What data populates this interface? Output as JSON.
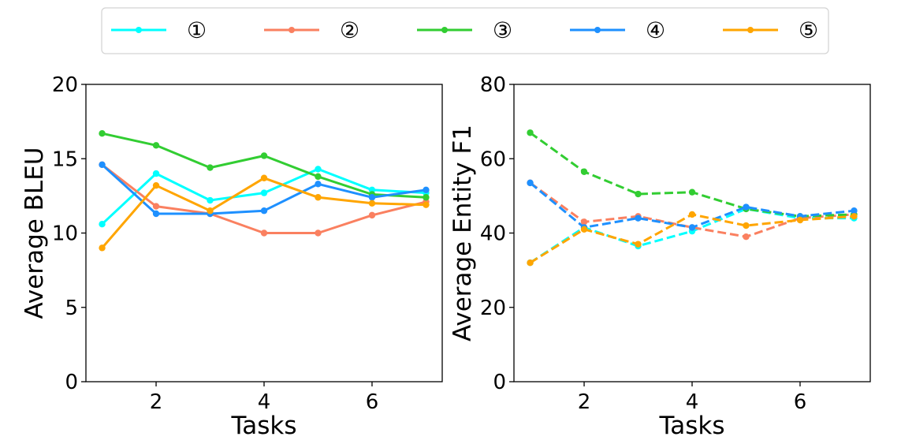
{
  "legend": {
    "location": "top-center",
    "entries": [
      {
        "label": "①",
        "color": "#00FFFF"
      },
      {
        "label": "②",
        "color": "#FA8060"
      },
      {
        "label": "③",
        "color": "#32CD32"
      },
      {
        "label": "④",
        "color": "#1E90FF"
      },
      {
        "label": "⑤",
        "color": "#FFA500"
      }
    ]
  },
  "chart_data": [
    {
      "type": "line",
      "line_style": "solid",
      "xlabel": "Tasks",
      "ylabel": "Average BLEU",
      "xlim": [
        0.7,
        7.3
      ],
      "ylim": [
        0,
        20
      ],
      "xticks": [
        2,
        4,
        6
      ],
      "yticks": [
        0,
        5,
        10,
        15,
        20
      ],
      "x": [
        1,
        2,
        3,
        4,
        5,
        6,
        7
      ],
      "series": [
        {
          "name": "①",
          "color": "#00FFFF",
          "values": [
            10.6,
            14.0,
            12.2,
            12.7,
            14.3,
            12.9,
            12.7
          ]
        },
        {
          "name": "②",
          "color": "#FA8060",
          "values": [
            14.6,
            11.8,
            11.3,
            10.0,
            10.0,
            11.2,
            12.1
          ]
        },
        {
          "name": "③",
          "color": "#32CD32",
          "values": [
            16.7,
            15.9,
            14.4,
            15.2,
            13.8,
            12.6,
            12.4
          ]
        },
        {
          "name": "④",
          "color": "#1E90FF",
          "values": [
            14.6,
            11.3,
            11.3,
            11.5,
            13.3,
            12.4,
            12.9
          ]
        },
        {
          "name": "⑤",
          "color": "#FFA500",
          "values": [
            9.0,
            13.2,
            11.5,
            13.7,
            12.4,
            12.0,
            11.9
          ]
        }
      ]
    },
    {
      "type": "line",
      "line_style": "dashed",
      "xlabel": "Tasks",
      "ylabel": "Average Entity F1",
      "xlim": [
        0.7,
        7.3
      ],
      "ylim": [
        0,
        80
      ],
      "xticks": [
        2,
        4,
        6
      ],
      "yticks": [
        0,
        20,
        40,
        60,
        80
      ],
      "x": [
        1,
        2,
        3,
        4,
        5,
        6,
        7
      ],
      "series": [
        {
          "name": "①",
          "color": "#00FFFF",
          "values": [
            32.0,
            41.5,
            36.5,
            40.5,
            46.5,
            44.0,
            44.0
          ]
        },
        {
          "name": "②",
          "color": "#FA8060",
          "values": [
            53.5,
            43.0,
            44.5,
            41.5,
            39.0,
            44.0,
            45.0
          ]
        },
        {
          "name": "③",
          "color": "#32CD32",
          "values": [
            67.0,
            56.5,
            50.5,
            51.0,
            46.5,
            44.5,
            45.0
          ]
        },
        {
          "name": "④",
          "color": "#1E90FF",
          "values": [
            53.5,
            41.5,
            44.0,
            41.5,
            47.0,
            44.5,
            46.0
          ]
        },
        {
          "name": "⑤",
          "color": "#FFA500",
          "values": [
            32.0,
            41.0,
            37.0,
            45.0,
            42.0,
            43.5,
            44.5
          ]
        }
      ]
    }
  ]
}
